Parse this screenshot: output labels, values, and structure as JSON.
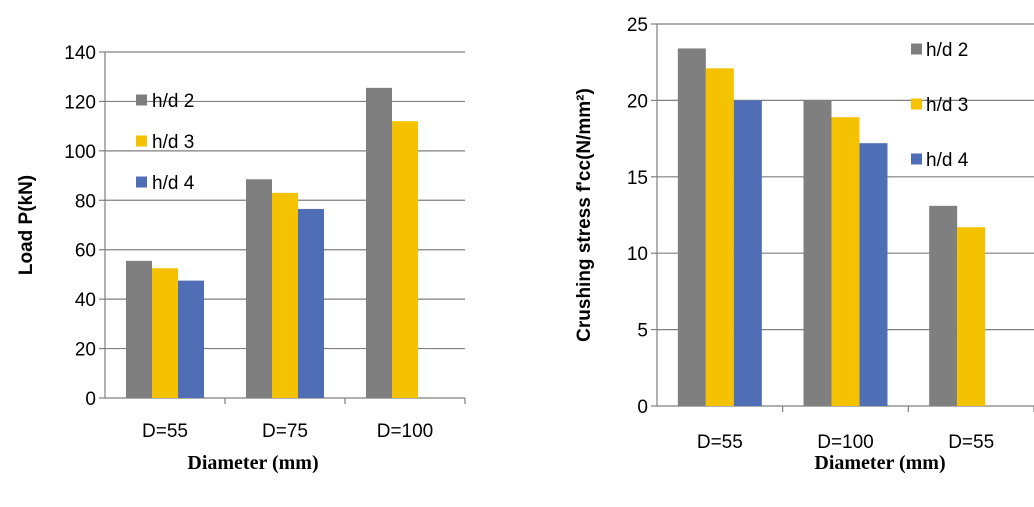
{
  "colors": {
    "h/d 2": "#7f7f7f",
    "h/d 3": "#f5c200",
    "h/d 4": "#4f6eb5"
  },
  "chart_data": [
    {
      "type": "bar",
      "categories": [
        "D=55",
        "D=75",
        "D=100"
      ],
      "series": [
        {
          "name": "h/d 2",
          "values": [
            55.5,
            88.5,
            125.5
          ]
        },
        {
          "name": "h/d 3",
          "values": [
            52.5,
            83.0,
            112.0
          ]
        },
        {
          "name": "h/d 4",
          "values": [
            47.5,
            76.5,
            null
          ]
        }
      ],
      "ylabel": "Load P(kN)",
      "xlabel": "Diameter (mm)",
      "ylim": [
        0,
        140
      ],
      "yticks": [
        0,
        20,
        40,
        60,
        80,
        100,
        120,
        140
      ],
      "grid": true,
      "legend": "left"
    },
    {
      "type": "bar",
      "categories": [
        "D=55",
        "D=100",
        "D=55"
      ],
      "series": [
        {
          "name": "h/d 2",
          "values": [
            23.4,
            20.0,
            13.1
          ]
        },
        {
          "name": "h/d 3",
          "values": [
            22.1,
            18.9,
            11.7
          ]
        },
        {
          "name": "h/d 4",
          "values": [
            20.0,
            17.2,
            null
          ]
        }
      ],
      "ylabel": "Crushing stress f'cc(N/mm²)",
      "xlabel": "Diameter (mm)",
      "ylim": [
        0,
        25
      ],
      "yticks": [
        0,
        5,
        10,
        15,
        20,
        25
      ],
      "grid": true,
      "legend": "right"
    }
  ]
}
